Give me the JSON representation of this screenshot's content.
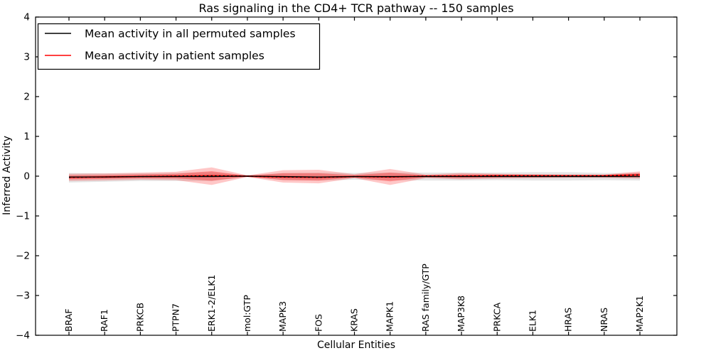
{
  "colors": {
    "permuted_line": "#000000",
    "patient_line": "#ff0000",
    "permuted_band": "#000000",
    "patient_band": "#ff0000",
    "frame": "#000000",
    "background": "#ffffff"
  },
  "legend": {
    "entries": [
      {
        "label": "Mean activity in all permuted samples",
        "color": "#000000"
      },
      {
        "label": "Mean activity in patient samples",
        "color": "#ff0000"
      }
    ]
  },
  "chart_data": {
    "type": "line",
    "title": "Ras signaling in the CD4+ TCR pathway -- 150 samples",
    "xlabel": "Cellular Entities",
    "ylabel": "Inferred Activity",
    "ylim": [
      -4,
      4
    ],
    "grid": false,
    "legend_position": "upper left",
    "ytick_values": [
      4,
      3,
      2,
      1,
      0,
      -1,
      -2,
      -3,
      -4
    ],
    "ytick_labels": [
      "4",
      "3",
      "2",
      "1",
      "0",
      "−1",
      "−2",
      "−3",
      "−4"
    ],
    "categories": [
      "BRAF",
      "RAF1",
      "PRKCB",
      "PTPN7",
      "ERK1-2/ELK1",
      "mol:GTP",
      "MAPK3",
      "FOS",
      "KRAS",
      "MAPK1",
      "RAS family/GTP",
      "MAP3K8",
      "PRKCA",
      "ELK1",
      "HRAS",
      "NRAS",
      "MAP2K1"
    ],
    "series": [
      {
        "name": "Mean activity in all permuted samples",
        "color": "#000000",
        "values": [
          -0.02,
          -0.02,
          -0.01,
          -0.01,
          -0.01,
          0.0,
          -0.01,
          -0.02,
          -0.01,
          -0.01,
          -0.01,
          -0.01,
          -0.01,
          -0.01,
          -0.01,
          -0.01,
          -0.01
        ]
      },
      {
        "name": "Mean activity in patient samples",
        "color": "#ff0000",
        "values": [
          -0.03,
          -0.02,
          -0.01,
          0.0,
          0.01,
          0.0,
          -0.02,
          -0.03,
          -0.01,
          -0.02,
          0.0,
          0.0,
          0.01,
          0.01,
          0.01,
          0.01,
          0.03
        ]
      }
    ],
    "bands": [
      {
        "name": "permuted-std-band",
        "color": "#000000",
        "opacity": 0.1,
        "upper": [
          0.08,
          0.07,
          0.07,
          0.08,
          0.1,
          0.02,
          0.08,
          0.09,
          0.08,
          0.09,
          0.09,
          0.09,
          0.09,
          0.1,
          0.1,
          0.08,
          0.08
        ],
        "lower": [
          -0.16,
          -0.14,
          -0.12,
          -0.12,
          -0.12,
          -0.02,
          -0.1,
          -0.11,
          -0.09,
          -0.1,
          -0.11,
          -0.11,
          -0.1,
          -0.11,
          -0.11,
          -0.1,
          -0.11
        ]
      },
      {
        "name": "patient-std-band",
        "color": "#ff0000",
        "opacity": 0.22,
        "upper": [
          0.06,
          0.07,
          0.09,
          0.11,
          0.22,
          0.02,
          0.15,
          0.16,
          0.05,
          0.18,
          0.04,
          0.08,
          0.06,
          0.05,
          0.04,
          0.04,
          0.12
        ],
        "lower": [
          -0.12,
          -0.11,
          -0.09,
          -0.1,
          -0.22,
          -0.02,
          -0.16,
          -0.18,
          -0.05,
          -0.22,
          -0.05,
          -0.08,
          -0.06,
          -0.05,
          -0.04,
          -0.04,
          -0.06
        ]
      }
    ]
  }
}
